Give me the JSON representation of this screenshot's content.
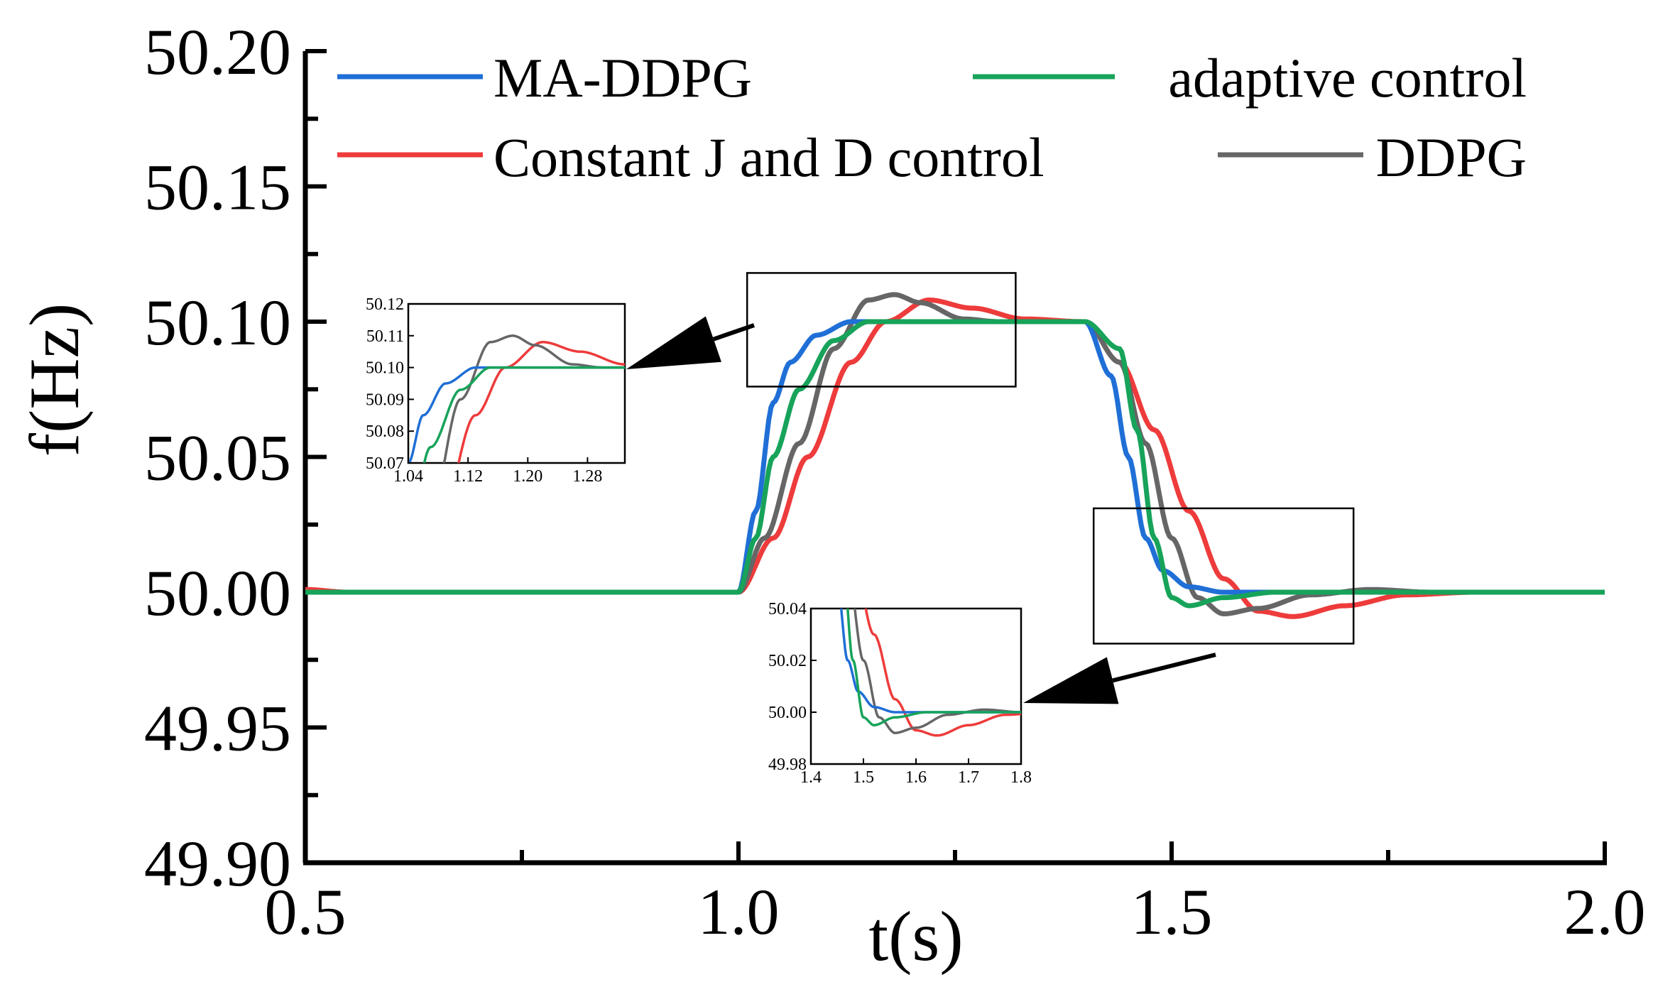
{
  "chart_data": {
    "type": "line",
    "title": "",
    "xlabel": "t(s)",
    "ylabel": "f(Hz)",
    "xlim": [
      0.5,
      2.0
    ],
    "ylim": [
      49.9,
      50.2
    ],
    "xticks": [
      0.5,
      1.0,
      1.5,
      2.0
    ],
    "xtick_labels": [
      "0.5",
      "1.0",
      "1.5",
      "2.0"
    ],
    "yticks": [
      49.9,
      49.95,
      50.0,
      50.05,
      50.1,
      50.15,
      50.2
    ],
    "ytick_labels": [
      "49.90",
      "49.95",
      "50.00",
      "50.05",
      "50.10",
      "50.15",
      "50.20"
    ],
    "legend_position": "top",
    "series": [
      {
        "name": "MA-DDPG",
        "color": "#1f6fd6",
        "points": [
          [
            0.5,
            50.0
          ],
          [
            1.0,
            50.0
          ],
          [
            1.02,
            50.03
          ],
          [
            1.04,
            50.07
          ],
          [
            1.06,
            50.085
          ],
          [
            1.09,
            50.095
          ],
          [
            1.13,
            50.1
          ],
          [
            1.4,
            50.1
          ],
          [
            1.43,
            50.08
          ],
          [
            1.45,
            50.05
          ],
          [
            1.47,
            50.02
          ],
          [
            1.49,
            50.008
          ],
          [
            1.52,
            50.002
          ],
          [
            1.56,
            50.0
          ],
          [
            2.0,
            50.0
          ]
        ]
      },
      {
        "name": "adaptive control",
        "color": "#17a35a",
        "points": [
          [
            0.5,
            50.0
          ],
          [
            1.0,
            50.0
          ],
          [
            1.02,
            50.02
          ],
          [
            1.04,
            50.05
          ],
          [
            1.07,
            50.075
          ],
          [
            1.11,
            50.093
          ],
          [
            1.15,
            50.1
          ],
          [
            1.4,
            50.1
          ],
          [
            1.44,
            50.09
          ],
          [
            1.46,
            50.06
          ],
          [
            1.48,
            50.02
          ],
          [
            1.5,
            49.998
          ],
          [
            1.52,
            49.995
          ],
          [
            1.56,
            49.998
          ],
          [
            1.62,
            50.0
          ],
          [
            2.0,
            50.0
          ]
        ]
      },
      {
        "name": "Constant J and D control",
        "color": "#ee3b3b",
        "points": [
          [
            0.5,
            50.001
          ],
          [
            0.55,
            50.0
          ],
          [
            1.0,
            50.0
          ],
          [
            1.04,
            50.02
          ],
          [
            1.08,
            50.05
          ],
          [
            1.13,
            50.085
          ],
          [
            1.17,
            50.1
          ],
          [
            1.22,
            50.108
          ],
          [
            1.27,
            50.105
          ],
          [
            1.33,
            50.101
          ],
          [
            1.4,
            50.1
          ],
          [
            1.44,
            50.085
          ],
          [
            1.48,
            50.06
          ],
          [
            1.52,
            50.03
          ],
          [
            1.56,
            50.005
          ],
          [
            1.6,
            49.993
          ],
          [
            1.64,
            49.991
          ],
          [
            1.7,
            49.995
          ],
          [
            1.77,
            49.999
          ],
          [
            1.85,
            50.0
          ],
          [
            2.0,
            50.0
          ]
        ]
      },
      {
        "name": "DDPG",
        "color": "#666666",
        "points": [
          [
            0.5,
            50.0
          ],
          [
            1.0,
            50.0
          ],
          [
            1.03,
            50.02
          ],
          [
            1.07,
            50.055
          ],
          [
            1.11,
            50.09
          ],
          [
            1.15,
            50.108
          ],
          [
            1.18,
            50.11
          ],
          [
            1.21,
            50.107
          ],
          [
            1.26,
            50.101
          ],
          [
            1.3,
            50.1
          ],
          [
            1.4,
            50.1
          ],
          [
            1.44,
            50.085
          ],
          [
            1.47,
            50.055
          ],
          [
            1.5,
            50.02
          ],
          [
            1.53,
            49.998
          ],
          [
            1.56,
            49.992
          ],
          [
            1.6,
            49.994
          ],
          [
            1.66,
            49.999
          ],
          [
            1.73,
            50.001
          ],
          [
            1.8,
            50.0
          ],
          [
            2.0,
            50.0
          ]
        ]
      }
    ],
    "insets": [
      {
        "name": "peak zoom",
        "xlim": [
          1.04,
          1.33
        ],
        "ylim": [
          50.07,
          50.12
        ],
        "xticks": [
          1.04,
          1.12,
          1.2,
          1.28
        ],
        "xtick_labels": [
          "1.04",
          "1.12",
          "1.20",
          "1.28"
        ],
        "yticks": [
          50.07,
          50.08,
          50.09,
          50.1,
          50.11,
          50.12
        ],
        "ytick_labels": [
          "50.07",
          "50.08",
          "50.09",
          "50.10",
          "50.11",
          "50.12"
        ],
        "source_x": [
          1.01,
          1.32
        ],
        "source_y": [
          50.076,
          50.118
        ]
      },
      {
        "name": "trough zoom",
        "xlim": [
          1.4,
          1.8
        ],
        "ylim": [
          49.98,
          50.04
        ],
        "xticks": [
          1.4,
          1.5,
          1.6,
          1.7,
          1.8
        ],
        "xtick_labels": [
          "1.4",
          "1.5",
          "1.6",
          "1.7",
          "1.8"
        ],
        "yticks": [
          49.98,
          50.0,
          50.02,
          50.04
        ],
        "ytick_labels": [
          "49.98",
          "50.00",
          "50.02",
          "50.04"
        ],
        "source_x": [
          1.41,
          1.71
        ],
        "source_y": [
          49.981,
          50.031
        ]
      }
    ]
  }
}
